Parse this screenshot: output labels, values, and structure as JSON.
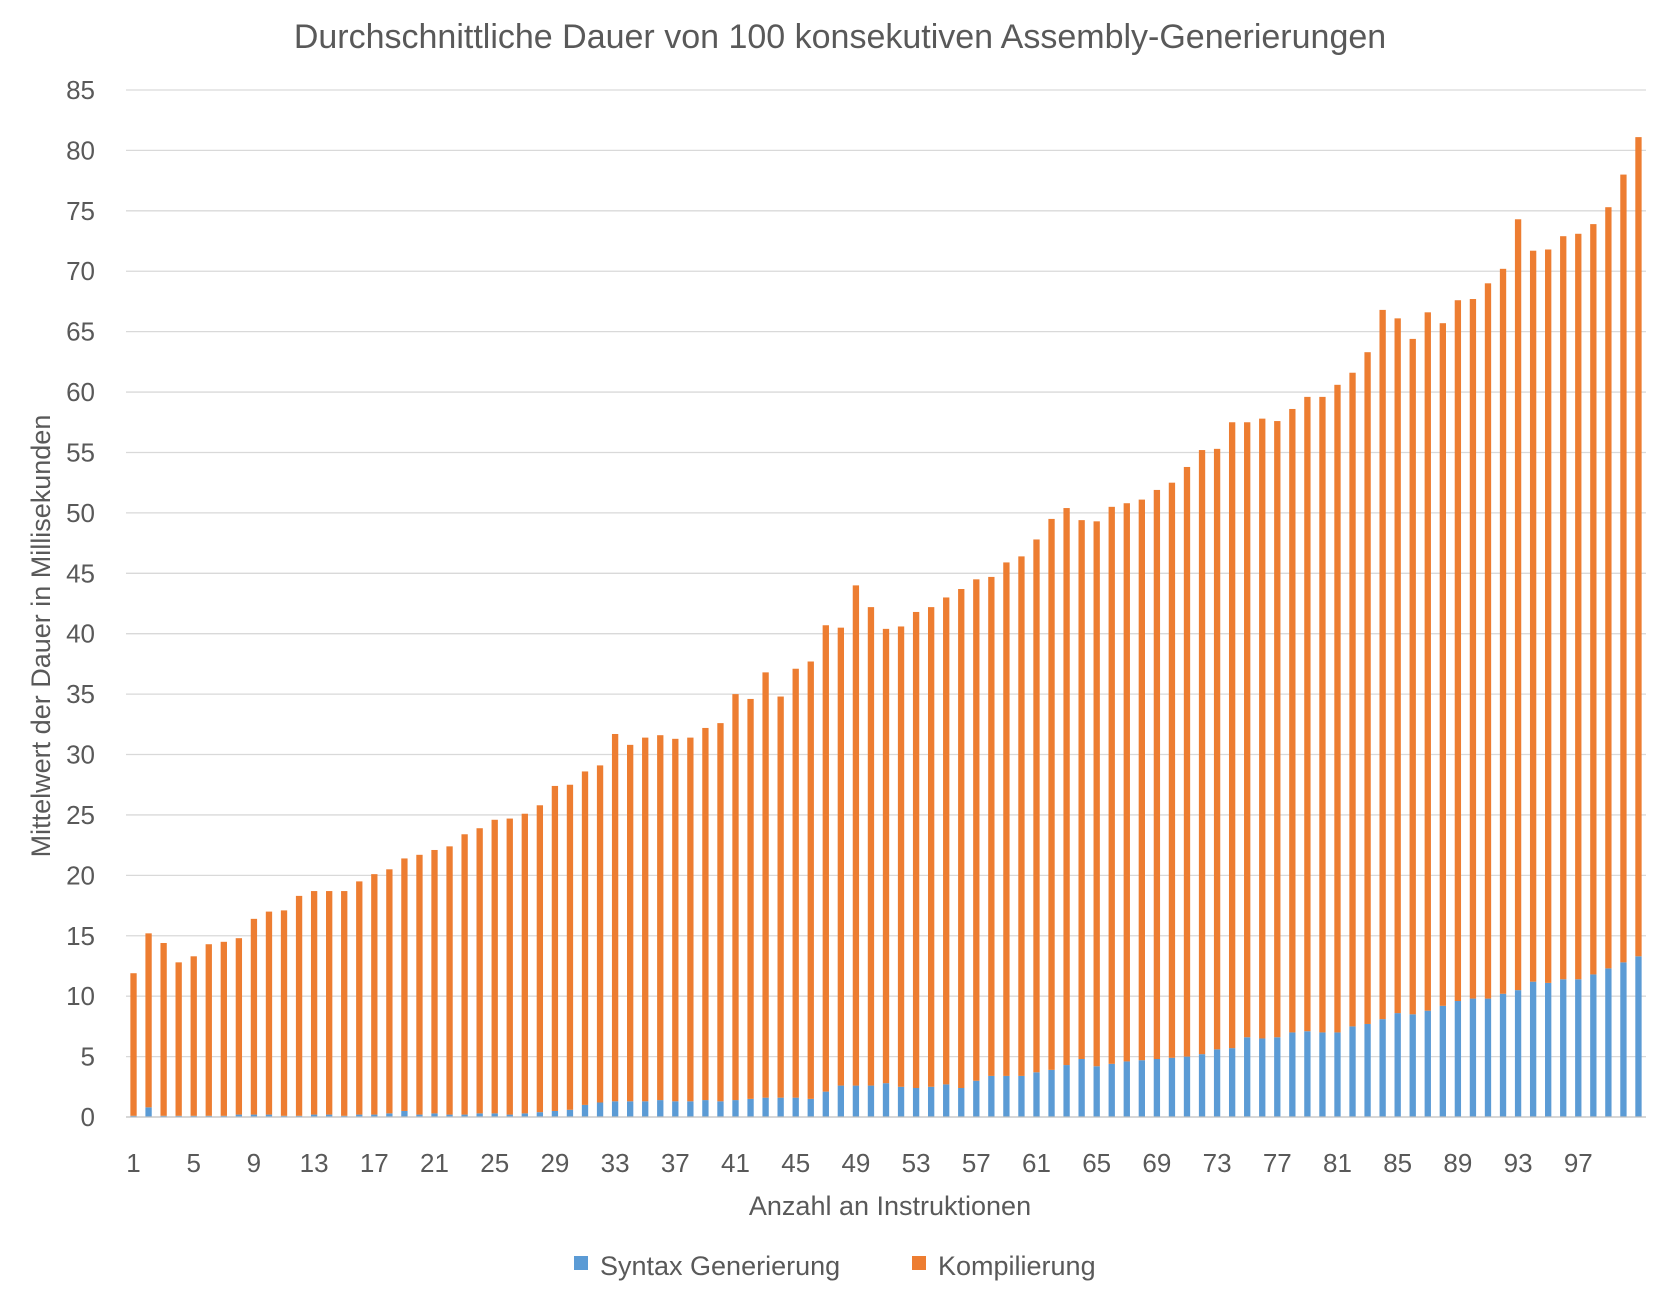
{
  "chart_data": {
    "type": "bar",
    "stacked": true,
    "title": "Durchschnittliche Dauer von 100 konsekutiven Assembly-Generierungen",
    "xlabel": "Anzahl an Instruktionen",
    "ylabel": "Mittelwert der Dauer in Millisekunden",
    "ylim": [
      0,
      85
    ],
    "ytick_step": 5,
    "yticks": [
      "0",
      "5",
      "10",
      "15",
      "20",
      "25",
      "30",
      "35",
      "40",
      "45",
      "50",
      "55",
      "60",
      "65",
      "70",
      "75",
      "80",
      "85"
    ],
    "grid": "horizontal",
    "legend_position": "bottom",
    "categories": [
      1,
      2,
      3,
      4,
      5,
      6,
      7,
      8,
      9,
      10,
      11,
      12,
      13,
      14,
      15,
      16,
      17,
      18,
      19,
      20,
      21,
      22,
      23,
      24,
      25,
      26,
      27,
      28,
      29,
      30,
      31,
      32,
      33,
      34,
      35,
      36,
      37,
      38,
      39,
      40,
      41,
      42,
      43,
      44,
      45,
      46,
      47,
      48,
      49,
      50,
      51,
      52,
      53,
      54,
      55,
      56,
      57,
      58,
      59,
      60,
      61,
      62,
      63,
      64,
      65,
      66,
      67,
      68,
      69,
      70,
      71,
      72,
      73,
      74,
      75,
      76,
      77,
      78,
      79,
      80,
      81,
      82,
      83,
      84,
      85,
      86,
      87,
      88,
      89,
      90,
      91,
      92,
      93,
      94,
      95,
      96,
      97,
      98,
      99,
      100,
      101
    ],
    "visible_tick_labels": [
      "1",
      "5",
      "9",
      "13",
      "17",
      "21",
      "25",
      "29",
      "33",
      "37",
      "41",
      "45",
      "49",
      "53",
      "57",
      "61",
      "65",
      "69",
      "73",
      "77",
      "81",
      "85",
      "89",
      "93",
      "97"
    ],
    "series": [
      {
        "name": "Syntax Generierung",
        "color": "#5b9bd5",
        "values": [
          0.1,
          0.8,
          0.1,
          0.1,
          0.1,
          0.1,
          0.1,
          0.2,
          0.2,
          0.2,
          0.1,
          0.1,
          0.2,
          0.2,
          0.1,
          0.2,
          0.2,
          0.3,
          0.5,
          0.2,
          0.3,
          0.2,
          0.2,
          0.3,
          0.3,
          0.2,
          0.3,
          0.4,
          0.5,
          0.6,
          1.0,
          1.2,
          1.3,
          1.3,
          1.3,
          1.4,
          1.3,
          1.3,
          1.4,
          1.3,
          1.4,
          1.5,
          1.6,
          1.6,
          1.6,
          1.5,
          2.1,
          2.6,
          2.6,
          2.6,
          2.8,
          2.5,
          2.4,
          2.5,
          2.7,
          2.4,
          3.0,
          3.4,
          3.4,
          3.4,
          3.7,
          3.9,
          4.3,
          4.8,
          4.2,
          4.4,
          4.6,
          4.7,
          4.8,
          4.9,
          5.0,
          5.2,
          5.6,
          5.7,
          6.6,
          6.5,
          6.6,
          7.0,
          7.1,
          7.0,
          7.0,
          7.5,
          7.7,
          8.1,
          8.6,
          8.5,
          8.8,
          9.2,
          9.6,
          9.8,
          9.8,
          10.2,
          10.5,
          11.2,
          11.1,
          11.4,
          11.4,
          11.8,
          12.3,
          12.8,
          13.3
        ]
      },
      {
        "name": "Kompilierung",
        "color": "#ed7d31",
        "values": [
          11.8,
          14.4,
          14.3,
          12.7,
          13.2,
          14.2,
          14.4,
          14.6,
          16.2,
          16.8,
          17.0,
          18.2,
          18.5,
          18.5,
          18.6,
          19.3,
          19.9,
          20.2,
          20.9,
          21.5,
          21.8,
          22.2,
          23.2,
          23.6,
          24.3,
          24.5,
          24.8,
          25.4,
          26.9,
          26.9,
          27.6,
          27.9,
          30.4,
          29.5,
          30.1,
          30.2,
          30.0,
          30.1,
          30.8,
          31.3,
          33.6,
          33.1,
          35.2,
          33.2,
          35.5,
          36.2,
          38.6,
          37.9,
          41.4,
          39.6,
          37.6,
          38.1,
          39.4,
          39.7,
          40.3,
          41.3,
          41.5,
          41.3,
          42.5,
          43.0,
          44.1,
          45.6,
          46.1,
          44.6,
          45.1,
          46.1,
          46.2,
          46.4,
          47.1,
          47.6,
          48.8,
          50.0,
          49.7,
          51.8,
          50.9,
          51.3,
          51.0,
          51.6,
          52.5,
          52.6,
          53.6,
          54.1,
          55.6,
          58.7,
          57.5,
          55.9,
          57.8,
          56.5,
          58.0,
          57.9,
          59.2,
          60.0,
          63.8,
          60.5,
          60.7,
          61.5,
          61.7,
          62.1,
          63.0,
          65.2,
          67.8
        ]
      }
    ]
  },
  "legend": {
    "item1": {
      "label": "Syntax Generierung",
      "color": "#5b9bd5"
    },
    "item2": {
      "label": "Kompilierung",
      "color": "#ed7d31"
    }
  }
}
